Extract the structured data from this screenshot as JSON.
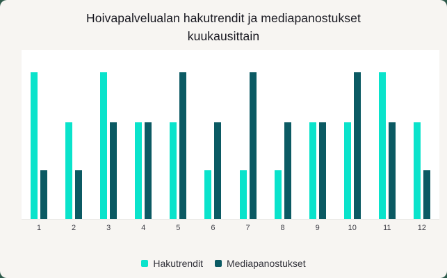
{
  "chart_data": {
    "type": "bar",
    "title": "Hoivapalvelualan hakutrendit ja mediapanostukset kuukausittain",
    "categories": [
      "1",
      "2",
      "3",
      "4",
      "5",
      "6",
      "7",
      "8",
      "9",
      "10",
      "11",
      "12"
    ],
    "series": [
      {
        "name": "Hakutrendit",
        "color": "#0ae3cb",
        "values": [
          100,
          66,
          100,
          66,
          66,
          33,
          33,
          33,
          66,
          66,
          100,
          66
        ]
      },
      {
        "name": "Mediapanostukset",
        "color": "#0b5a63",
        "values": [
          33,
          33,
          66,
          66,
          100,
          66,
          100,
          66,
          66,
          100,
          66,
          33
        ]
      }
    ],
    "xlabel": "",
    "ylabel": "",
    "ylim": [
      0,
      115
    ],
    "grid": false,
    "legend_position": "bottom"
  },
  "colors": {
    "card_background": "#f7f5f2",
    "plot_background": "#ffffff",
    "axis_line": "#e8e8e5",
    "page_behind_card": "#2f5b4c",
    "title_text": "#17171f",
    "tick_text": "#3e3e46",
    "legend_text": "#33333b"
  }
}
